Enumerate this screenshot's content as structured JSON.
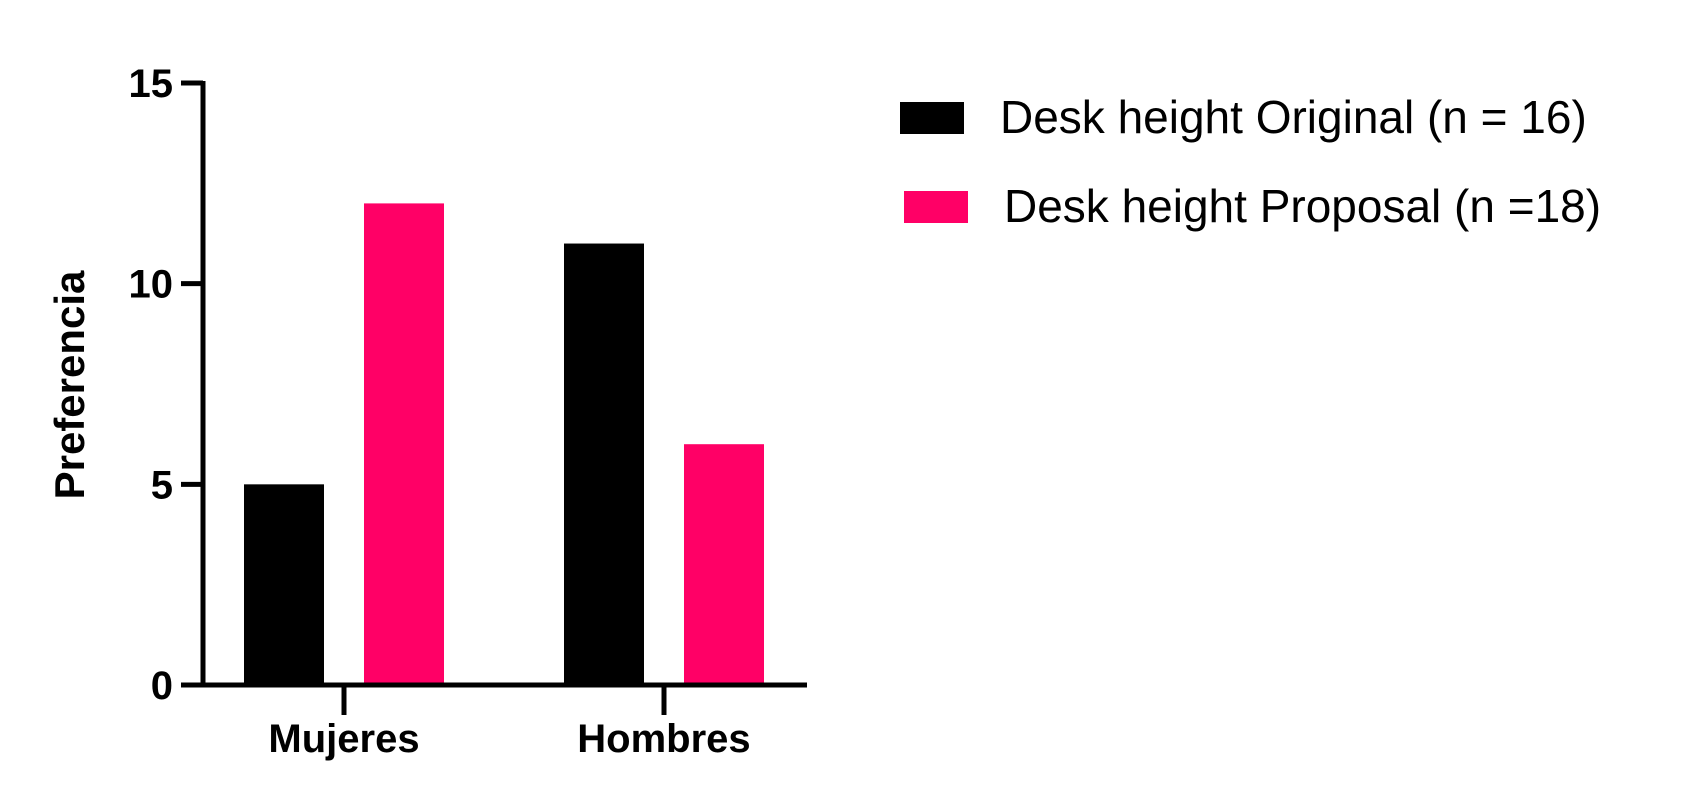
{
  "chart_data": {
    "type": "bar",
    "title": "",
    "xlabel": "",
    "ylabel": "Preferencia",
    "categories": [
      "Mujeres",
      "Hombres"
    ],
    "series": [
      {
        "name": "Desk height Original (n = 16)",
        "values": [
          5,
          11
        ],
        "color": "#000000"
      },
      {
        "name": "Desk height Proposal (n =18)",
        "values": [
          12,
          6
        ],
        "color": "#FF0066"
      }
    ],
    "ylim": [
      0,
      15
    ],
    "yticks": [
      0,
      5,
      10,
      15
    ],
    "grid": false,
    "legend_position": "top-right"
  }
}
